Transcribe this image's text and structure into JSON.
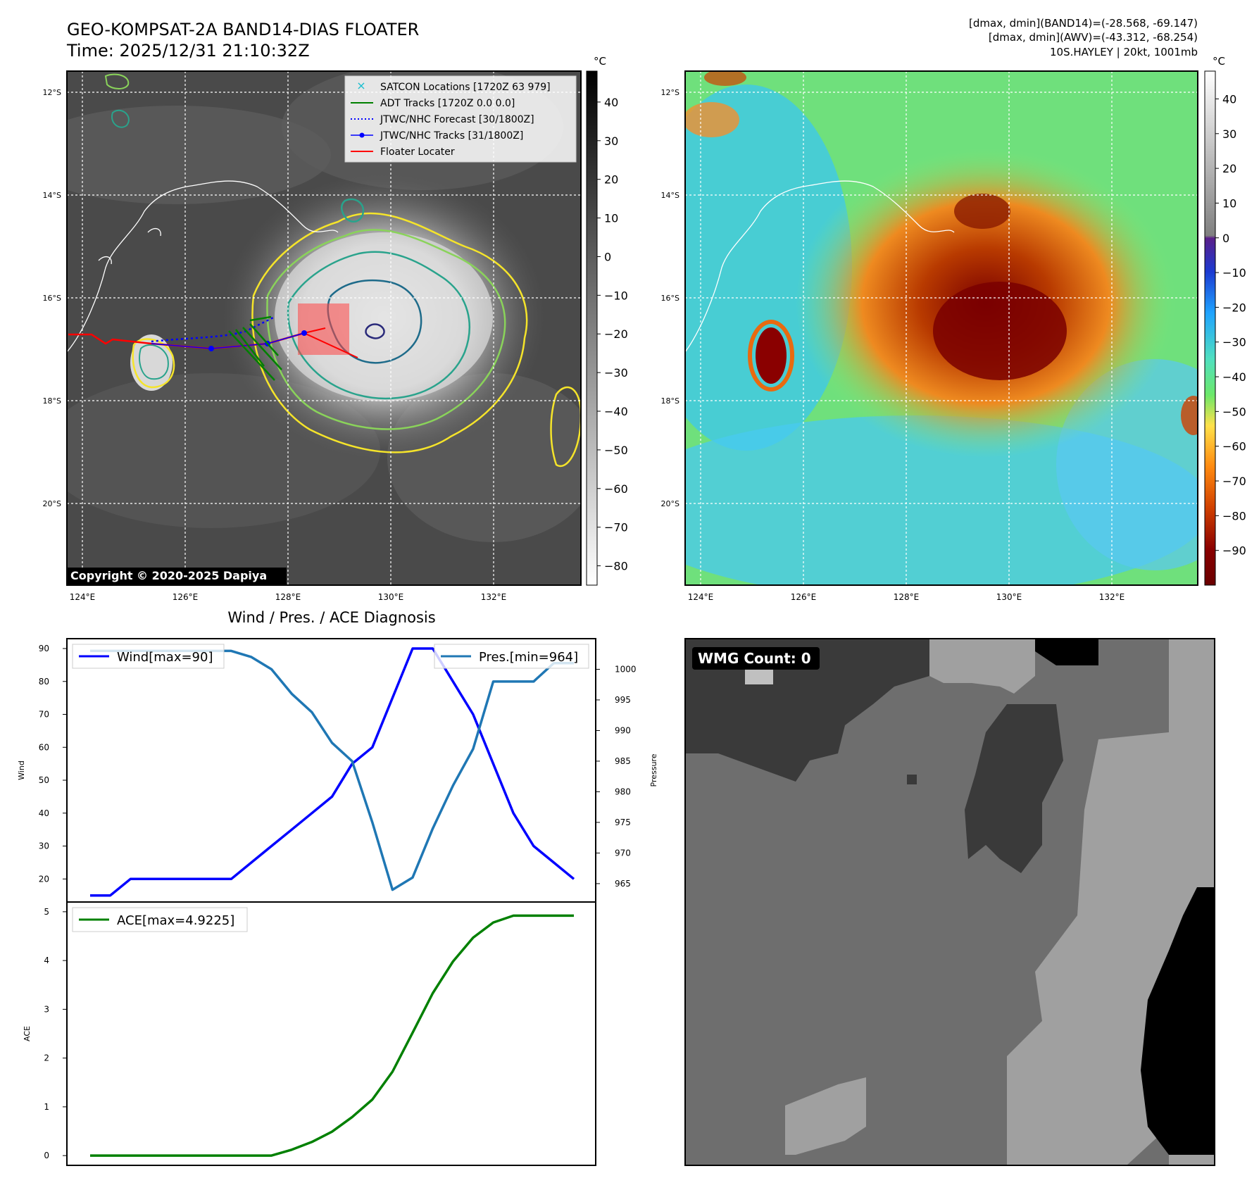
{
  "header": {
    "title_line1": "GEO-KOMPSAT-2A BAND14-DIAS FLOATER",
    "title_line2": "Time: 2025/12/31 21:10:32Z",
    "info_line1": "[dmax, dmin](BAND14)=(-28.568, -69.147)",
    "info_line2": "[dmax, dmin](AWV)=(-43.312, -68.254)",
    "info_line3": "10S.HAYLEY | 20kt, 1001mb"
  },
  "maps": {
    "lat_labels": [
      "12°S",
      "14°S",
      "16°S",
      "18°S",
      "20°S"
    ],
    "lon_labels": [
      "124°E",
      "126°E",
      "128°E",
      "130°E",
      "132°E"
    ],
    "lat_values": [
      -12,
      -14,
      -16,
      -18,
      -20
    ],
    "lon_values": [
      124,
      126,
      128,
      130,
      132
    ],
    "copyright": "Copyright © 2020-2025 Dapiya",
    "legend": [
      {
        "label": "SATCON Locations [1720Z 63 979]",
        "color": "#17becf",
        "style": "x"
      },
      {
        "label": "ADT Tracks [1720Z 0.0 0.0]",
        "color": "#008000",
        "style": "solid"
      },
      {
        "label": "JTWC/NHC Forecast [30/1800Z]",
        "color": "#0000ff",
        "style": "dotted"
      },
      {
        "label": "JTWC/NHC Tracks [31/1800Z]",
        "color": "#0000ff",
        "style": "dot-line"
      },
      {
        "label": "Floater Locater",
        "color": "#ff0000",
        "style": "solid"
      }
    ],
    "cbar_left": {
      "unit": "°C",
      "ticks": [
        "40",
        "30",
        "20",
        "10",
        "0",
        "−10",
        "−20",
        "−30",
        "−40",
        "−50",
        "−60",
        "−70",
        "−80"
      ],
      "range": [
        48,
        -85
      ]
    },
    "cbar_right": {
      "unit": "°C",
      "ticks": [
        "40",
        "30",
        "20",
        "10",
        "0",
        "−10",
        "−20",
        "−30",
        "−40",
        "−50",
        "−60",
        "−70",
        "−80",
        "−90"
      ],
      "range": [
        48,
        -100
      ]
    }
  },
  "chart_data": [
    {
      "type": "line",
      "title": "Wind / Pres. / ACE Diagnosis",
      "ylabel": "Wind",
      "y2label": "Pressure",
      "ylim": [
        13,
        93
      ],
      "y2lim": [
        962,
        1005
      ],
      "x": [
        0,
        1,
        2,
        3,
        4,
        5,
        6,
        7,
        8,
        9,
        10,
        11,
        12,
        13,
        14,
        15,
        16,
        17,
        18,
        19,
        20,
        21,
        22,
        23,
        24
      ],
      "series": [
        {
          "name": "Wind[max=90]",
          "color": "#0000ff",
          "axis": "left",
          "values": [
            15,
            15,
            20,
            20,
            20,
            20,
            20,
            20,
            25,
            30,
            35,
            40,
            45,
            55,
            60,
            75,
            90,
            90,
            80,
            70,
            55,
            40,
            30,
            25,
            20
          ]
        },
        {
          "name": "Pres.[min=964]",
          "color": "#1f77b4",
          "axis": "right",
          "values": [
            1003,
            1003,
            1003,
            1003,
            1003,
            1003,
            1003,
            1003,
            1002,
            1000,
            996,
            993,
            988,
            985,
            975,
            964,
            966,
            974,
            981,
            987,
            998,
            998,
            998,
            1001,
            1001
          ]
        }
      ],
      "yticks": [
        "20",
        "30",
        "40",
        "50",
        "60",
        "70",
        "80",
        "90"
      ],
      "y2ticks": [
        "965",
        "970",
        "975",
        "980",
        "985",
        "990",
        "995",
        "1000"
      ]
    },
    {
      "type": "line",
      "ylabel": "ACE",
      "ylim": [
        -0.2,
        5.2
      ],
      "x": [
        0,
        1,
        2,
        3,
        4,
        5,
        6,
        7,
        8,
        9,
        10,
        11,
        12,
        13,
        14,
        15,
        16,
        17,
        18,
        19,
        20,
        21,
        22,
        23,
        24
      ],
      "series": [
        {
          "name": "ACE[max=4.9225]",
          "color": "#008000",
          "axis": "left",
          "values": [
            0,
            0,
            0,
            0,
            0,
            0,
            0,
            0,
            0,
            0,
            0.12,
            0.28,
            0.49,
            0.79,
            1.15,
            1.72,
            2.52,
            3.33,
            3.98,
            4.47,
            4.78,
            4.92,
            4.92,
            4.92,
            4.92
          ]
        }
      ],
      "yticks": [
        "0",
        "1",
        "2",
        "3",
        "4",
        "5"
      ]
    }
  ],
  "wmg": {
    "label": "WMG Count: 0"
  }
}
